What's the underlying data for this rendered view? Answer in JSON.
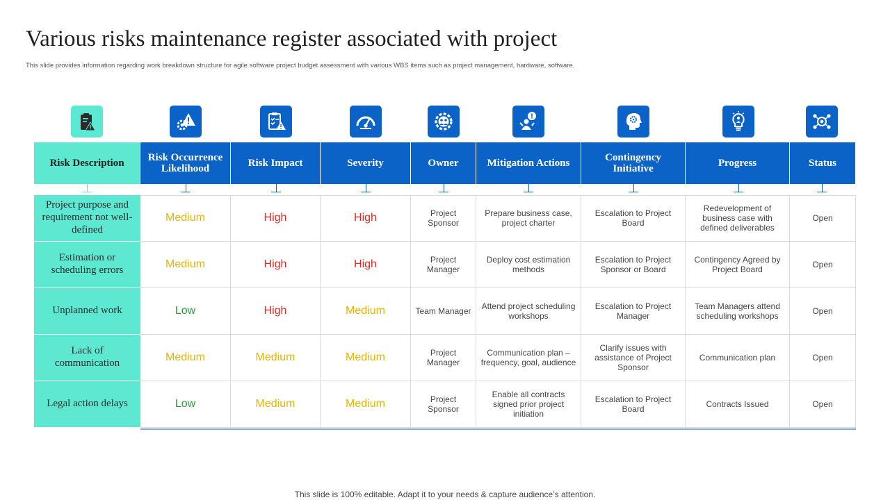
{
  "title": "Various risks maintenance register associated with project",
  "subtitle": "This slide provides information regarding work breakdown structure for agile software project budget assessment with various WBS items such as project management,  hardware, software.",
  "footer": "This slide is 100% editable. Adapt it to your needs & capture audience’s attention.",
  "colors": {
    "teal": "#5de8d2",
    "blue": "#0b63c7",
    "low": "#2e9b3c",
    "medium": "#e8b400",
    "high": "#e0281e"
  },
  "icons": [
    "clipboard-warning-icon",
    "gear-warning-icon",
    "checklist-warning-icon",
    "gauge-icon",
    "people-gear-icon",
    "person-exclamation-icon",
    "head-gear-icon",
    "lightbulb-person-icon",
    "network-target-icon"
  ],
  "headers": [
    "Risk Description",
    "Risk Occurrence Likelihood",
    "Risk Impact",
    "Severity",
    "Owner",
    "Mitigation Actions",
    "Contingency Initiative",
    "Progress",
    "Status"
  ],
  "rows": [
    {
      "description": "Project purpose and requirement not well-defined",
      "likelihood": "Medium",
      "impact": "High",
      "severity": "High",
      "owner": "Project Sponsor",
      "mitigation": "Prepare business case, project charter",
      "contingency": "Escalation to Project Board",
      "progress": "Redevelopment of business case with defined deliverables",
      "status": "Open"
    },
    {
      "description": "Estimation or scheduling errors",
      "likelihood": "Medium",
      "impact": "High",
      "severity": "High",
      "owner": "Project Manager",
      "mitigation": "Deploy cost estimation methods",
      "contingency": "Escalation to Project Sponsor or Board",
      "progress": "Contingency Agreed by Project Board",
      "status": "Open"
    },
    {
      "description": "Unplanned work",
      "likelihood": "Low",
      "impact": "High",
      "severity": "Medium",
      "owner": "Team Manager",
      "mitigation": "Attend project scheduling workshops",
      "contingency": "Escalation to Project Manager",
      "progress": "Team Managers attend scheduling workshops",
      "status": "Open"
    },
    {
      "description": "Lack of communication",
      "likelihood": "Medium",
      "impact": "Medium",
      "severity": "Medium",
      "owner": "Project Manager",
      "mitigation": "Communication plan – frequency, goal, audience",
      "contingency": "Clarify issues with assistance of Project Sponsor",
      "progress": "Communication plan",
      "status": "Open"
    },
    {
      "description": "Legal action delays",
      "likelihood": "Low",
      "impact": "Medium",
      "severity": "Medium",
      "owner": "Project Sponsor",
      "mitigation": "Enable all contracts signed prior project initiation",
      "contingency": "Escalation to Project Board",
      "progress": "Contracts Issued",
      "status": "Open"
    }
  ]
}
